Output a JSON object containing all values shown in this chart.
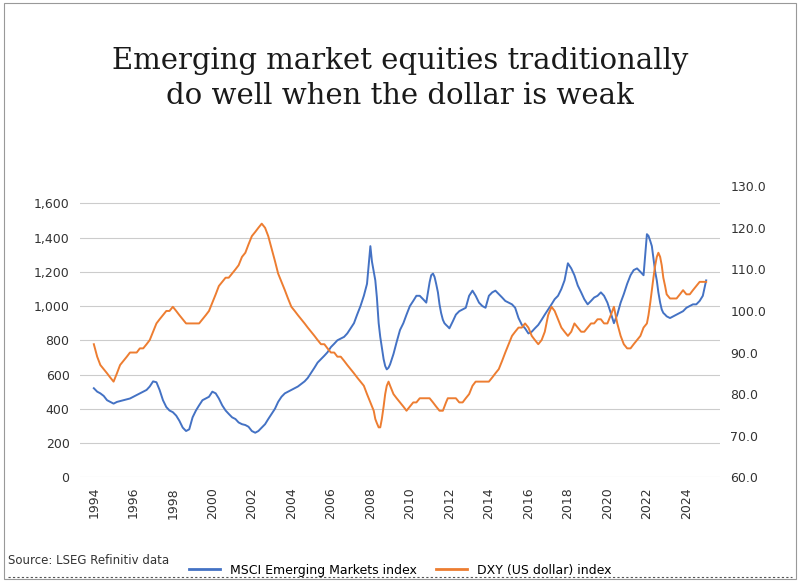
{
  "title": "Emerging market equities traditionally\ndo well when the dollar is weak",
  "title_bg_color": "#b8c9b8",
  "source_text": "Source: LSEG Refinitiv data",
  "legend_msci": "MSCI Emerging Markets index",
  "legend_dxy": "DXY (US dollar) index",
  "msci_color": "#4472c4",
  "dxy_color": "#ed7d31",
  "left_ylim": [
    0,
    1700
  ],
  "right_ylim": [
    60,
    130
  ],
  "left_yticks": [
    0,
    200,
    400,
    600,
    800,
    1000,
    1200,
    1400,
    1600
  ],
  "right_yticks": [
    60.0,
    70.0,
    80.0,
    90.0,
    100.0,
    110.0,
    120.0,
    130.0
  ],
  "xticks": [
    1994,
    1996,
    1998,
    2000,
    2002,
    2004,
    2006,
    2008,
    2010,
    2012,
    2014,
    2016,
    2018,
    2020,
    2022,
    2024
  ],
  "bg_color": "#ffffff",
  "plot_bg_color": "#ffffff",
  "grid_color": "#cccccc",
  "msci_data": [
    [
      1994.0,
      520
    ],
    [
      1994.17,
      500
    ],
    [
      1994.33,
      490
    ],
    [
      1994.5,
      475
    ],
    [
      1994.67,
      450
    ],
    [
      1994.83,
      440
    ],
    [
      1995.0,
      430
    ],
    [
      1995.17,
      440
    ],
    [
      1995.33,
      445
    ],
    [
      1995.5,
      450
    ],
    [
      1995.67,
      455
    ],
    [
      1995.83,
      460
    ],
    [
      1996.0,
      470
    ],
    [
      1996.17,
      480
    ],
    [
      1996.33,
      490
    ],
    [
      1996.5,
      500
    ],
    [
      1996.67,
      510
    ],
    [
      1996.83,
      530
    ],
    [
      1997.0,
      560
    ],
    [
      1997.17,
      555
    ],
    [
      1997.33,
      510
    ],
    [
      1997.5,
      450
    ],
    [
      1997.67,
      410
    ],
    [
      1997.83,
      390
    ],
    [
      1998.0,
      380
    ],
    [
      1998.17,
      360
    ],
    [
      1998.33,
      330
    ],
    [
      1998.5,
      290
    ],
    [
      1998.67,
      270
    ],
    [
      1998.83,
      280
    ],
    [
      1999.0,
      350
    ],
    [
      1999.17,
      390
    ],
    [
      1999.33,
      420
    ],
    [
      1999.5,
      450
    ],
    [
      1999.67,
      460
    ],
    [
      1999.83,
      470
    ],
    [
      2000.0,
      500
    ],
    [
      2000.17,
      490
    ],
    [
      2000.33,
      460
    ],
    [
      2000.5,
      420
    ],
    [
      2000.67,
      390
    ],
    [
      2000.83,
      370
    ],
    [
      2001.0,
      350
    ],
    [
      2001.17,
      340
    ],
    [
      2001.33,
      320
    ],
    [
      2001.5,
      310
    ],
    [
      2001.67,
      305
    ],
    [
      2001.83,
      295
    ],
    [
      2002.0,
      270
    ],
    [
      2002.17,
      260
    ],
    [
      2002.33,
      270
    ],
    [
      2002.5,
      290
    ],
    [
      2002.67,
      310
    ],
    [
      2002.83,
      340
    ],
    [
      2003.0,
      370
    ],
    [
      2003.17,
      400
    ],
    [
      2003.33,
      440
    ],
    [
      2003.5,
      470
    ],
    [
      2003.67,
      490
    ],
    [
      2003.83,
      500
    ],
    [
      2004.0,
      510
    ],
    [
      2004.17,
      520
    ],
    [
      2004.33,
      530
    ],
    [
      2004.5,
      545
    ],
    [
      2004.67,
      560
    ],
    [
      2004.83,
      580
    ],
    [
      2005.0,
      610
    ],
    [
      2005.17,
      640
    ],
    [
      2005.33,
      670
    ],
    [
      2005.5,
      690
    ],
    [
      2005.67,
      710
    ],
    [
      2005.83,
      730
    ],
    [
      2006.0,
      760
    ],
    [
      2006.17,
      780
    ],
    [
      2006.33,
      800
    ],
    [
      2006.5,
      810
    ],
    [
      2006.67,
      820
    ],
    [
      2006.83,
      840
    ],
    [
      2007.0,
      870
    ],
    [
      2007.17,
      900
    ],
    [
      2007.33,
      950
    ],
    [
      2007.5,
      1000
    ],
    [
      2007.67,
      1060
    ],
    [
      2007.83,
      1130
    ],
    [
      2008.0,
      1350
    ],
    [
      2008.08,
      1260
    ],
    [
      2008.17,
      1200
    ],
    [
      2008.25,
      1150
    ],
    [
      2008.33,
      1050
    ],
    [
      2008.42,
      900
    ],
    [
      2008.5,
      820
    ],
    [
      2008.58,
      760
    ],
    [
      2008.67,
      690
    ],
    [
      2008.75,
      650
    ],
    [
      2008.83,
      630
    ],
    [
      2008.92,
      640
    ],
    [
      2009.0,
      660
    ],
    [
      2009.17,
      720
    ],
    [
      2009.33,
      790
    ],
    [
      2009.5,
      860
    ],
    [
      2009.67,
      900
    ],
    [
      2009.83,
      950
    ],
    [
      2010.0,
      1000
    ],
    [
      2010.17,
      1030
    ],
    [
      2010.33,
      1060
    ],
    [
      2010.5,
      1060
    ],
    [
      2010.67,
      1040
    ],
    [
      2010.83,
      1020
    ],
    [
      2011.0,
      1140
    ],
    [
      2011.08,
      1180
    ],
    [
      2011.17,
      1190
    ],
    [
      2011.25,
      1170
    ],
    [
      2011.33,
      1130
    ],
    [
      2011.42,
      1080
    ],
    [
      2011.5,
      1010
    ],
    [
      2011.58,
      960
    ],
    [
      2011.67,
      920
    ],
    [
      2011.75,
      900
    ],
    [
      2011.83,
      890
    ],
    [
      2011.92,
      880
    ],
    [
      2012.0,
      870
    ],
    [
      2012.17,
      910
    ],
    [
      2012.33,
      950
    ],
    [
      2012.5,
      970
    ],
    [
      2012.67,
      980
    ],
    [
      2012.83,
      990
    ],
    [
      2013.0,
      1060
    ],
    [
      2013.17,
      1090
    ],
    [
      2013.33,
      1060
    ],
    [
      2013.5,
      1020
    ],
    [
      2013.67,
      1000
    ],
    [
      2013.83,
      990
    ],
    [
      2014.0,
      1060
    ],
    [
      2014.17,
      1080
    ],
    [
      2014.33,
      1090
    ],
    [
      2014.5,
      1070
    ],
    [
      2014.67,
      1050
    ],
    [
      2014.83,
      1030
    ],
    [
      2015.0,
      1020
    ],
    [
      2015.17,
      1010
    ],
    [
      2015.33,
      990
    ],
    [
      2015.5,
      930
    ],
    [
      2015.67,
      890
    ],
    [
      2015.83,
      870
    ],
    [
      2016.0,
      840
    ],
    [
      2016.17,
      850
    ],
    [
      2016.33,
      870
    ],
    [
      2016.5,
      890
    ],
    [
      2016.67,
      920
    ],
    [
      2016.83,
      950
    ],
    [
      2017.0,
      980
    ],
    [
      2017.17,
      1010
    ],
    [
      2017.33,
      1040
    ],
    [
      2017.5,
      1060
    ],
    [
      2017.67,
      1100
    ],
    [
      2017.83,
      1150
    ],
    [
      2018.0,
      1250
    ],
    [
      2018.17,
      1220
    ],
    [
      2018.33,
      1180
    ],
    [
      2018.5,
      1120
    ],
    [
      2018.67,
      1080
    ],
    [
      2018.83,
      1040
    ],
    [
      2019.0,
      1010
    ],
    [
      2019.17,
      1030
    ],
    [
      2019.33,
      1050
    ],
    [
      2019.5,
      1060
    ],
    [
      2019.67,
      1080
    ],
    [
      2019.83,
      1060
    ],
    [
      2020.0,
      1020
    ],
    [
      2020.17,
      960
    ],
    [
      2020.33,
      900
    ],
    [
      2020.5,
      950
    ],
    [
      2020.67,
      1020
    ],
    [
      2020.83,
      1070
    ],
    [
      2021.0,
      1130
    ],
    [
      2021.17,
      1180
    ],
    [
      2021.33,
      1210
    ],
    [
      2021.5,
      1220
    ],
    [
      2021.67,
      1200
    ],
    [
      2021.83,
      1180
    ],
    [
      2022.0,
      1420
    ],
    [
      2022.08,
      1410
    ],
    [
      2022.17,
      1380
    ],
    [
      2022.25,
      1350
    ],
    [
      2022.33,
      1280
    ],
    [
      2022.42,
      1200
    ],
    [
      2022.5,
      1150
    ],
    [
      2022.58,
      1080
    ],
    [
      2022.67,
      1020
    ],
    [
      2022.75,
      980
    ],
    [
      2022.83,
      960
    ],
    [
      2022.92,
      950
    ],
    [
      2023.0,
      940
    ],
    [
      2023.17,
      930
    ],
    [
      2023.33,
      940
    ],
    [
      2023.5,
      950
    ],
    [
      2023.67,
      960
    ],
    [
      2023.83,
      970
    ],
    [
      2024.0,
      990
    ],
    [
      2024.17,
      1000
    ],
    [
      2024.33,
      1010
    ],
    [
      2024.5,
      1010
    ],
    [
      2024.67,
      1030
    ],
    [
      2024.83,
      1060
    ],
    [
      2025.0,
      1150
    ]
  ],
  "dxy_data": [
    [
      1994.0,
      92
    ],
    [
      1994.17,
      89
    ],
    [
      1994.33,
      87
    ],
    [
      1994.5,
      86
    ],
    [
      1994.67,
      85
    ],
    [
      1994.83,
      84
    ],
    [
      1995.0,
      83
    ],
    [
      1995.17,
      85
    ],
    [
      1995.33,
      87
    ],
    [
      1995.5,
      88
    ],
    [
      1995.67,
      89
    ],
    [
      1995.83,
      90
    ],
    [
      1996.0,
      90
    ],
    [
      1996.17,
      90
    ],
    [
      1996.33,
      91
    ],
    [
      1996.5,
      91
    ],
    [
      1996.67,
      92
    ],
    [
      1996.83,
      93
    ],
    [
      1997.0,
      95
    ],
    [
      1997.17,
      97
    ],
    [
      1997.33,
      98
    ],
    [
      1997.5,
      99
    ],
    [
      1997.67,
      100
    ],
    [
      1997.83,
      100
    ],
    [
      1998.0,
      101
    ],
    [
      1998.17,
      100
    ],
    [
      1998.33,
      99
    ],
    [
      1998.5,
      98
    ],
    [
      1998.67,
      97
    ],
    [
      1998.83,
      97
    ],
    [
      1999.0,
      97
    ],
    [
      1999.17,
      97
    ],
    [
      1999.33,
      97
    ],
    [
      1999.5,
      98
    ],
    [
      1999.67,
      99
    ],
    [
      1999.83,
      100
    ],
    [
      2000.0,
      102
    ],
    [
      2000.17,
      104
    ],
    [
      2000.33,
      106
    ],
    [
      2000.5,
      107
    ],
    [
      2000.67,
      108
    ],
    [
      2000.83,
      108
    ],
    [
      2001.0,
      109
    ],
    [
      2001.17,
      110
    ],
    [
      2001.33,
      111
    ],
    [
      2001.5,
      113
    ],
    [
      2001.67,
      114
    ],
    [
      2001.83,
      116
    ],
    [
      2002.0,
      118
    ],
    [
      2002.17,
      119
    ],
    [
      2002.33,
      120
    ],
    [
      2002.5,
      121
    ],
    [
      2002.67,
      120
    ],
    [
      2002.83,
      118
    ],
    [
      2003.0,
      115
    ],
    [
      2003.17,
      112
    ],
    [
      2003.33,
      109
    ],
    [
      2003.5,
      107
    ],
    [
      2003.67,
      105
    ],
    [
      2003.83,
      103
    ],
    [
      2004.0,
      101
    ],
    [
      2004.17,
      100
    ],
    [
      2004.33,
      99
    ],
    [
      2004.5,
      98
    ],
    [
      2004.67,
      97
    ],
    [
      2004.83,
      96
    ],
    [
      2005.0,
      95
    ],
    [
      2005.17,
      94
    ],
    [
      2005.33,
      93
    ],
    [
      2005.5,
      92
    ],
    [
      2005.67,
      92
    ],
    [
      2005.83,
      91
    ],
    [
      2006.0,
      90
    ],
    [
      2006.17,
      90
    ],
    [
      2006.33,
      89
    ],
    [
      2006.5,
      89
    ],
    [
      2006.67,
      88
    ],
    [
      2006.83,
      87
    ],
    [
      2007.0,
      86
    ],
    [
      2007.17,
      85
    ],
    [
      2007.33,
      84
    ],
    [
      2007.5,
      83
    ],
    [
      2007.67,
      82
    ],
    [
      2007.83,
      80
    ],
    [
      2008.0,
      78
    ],
    [
      2008.08,
      77
    ],
    [
      2008.17,
      76
    ],
    [
      2008.25,
      74
    ],
    [
      2008.33,
      73
    ],
    [
      2008.42,
      72
    ],
    [
      2008.5,
      72
    ],
    [
      2008.58,
      74
    ],
    [
      2008.67,
      77
    ],
    [
      2008.75,
      80
    ],
    [
      2008.83,
      82
    ],
    [
      2008.92,
      83
    ],
    [
      2009.0,
      82
    ],
    [
      2009.17,
      80
    ],
    [
      2009.33,
      79
    ],
    [
      2009.5,
      78
    ],
    [
      2009.67,
      77
    ],
    [
      2009.83,
      76
    ],
    [
      2010.0,
      77
    ],
    [
      2010.17,
      78
    ],
    [
      2010.33,
      78
    ],
    [
      2010.5,
      79
    ],
    [
      2010.67,
      79
    ],
    [
      2010.83,
      79
    ],
    [
      2011.0,
      79
    ],
    [
      2011.17,
      78
    ],
    [
      2011.33,
      77
    ],
    [
      2011.5,
      76
    ],
    [
      2011.67,
      76
    ],
    [
      2011.75,
      77
    ],
    [
      2011.83,
      78
    ],
    [
      2011.92,
      79
    ],
    [
      2012.0,
      79
    ],
    [
      2012.17,
      79
    ],
    [
      2012.33,
      79
    ],
    [
      2012.5,
      78
    ],
    [
      2012.67,
      78
    ],
    [
      2012.83,
      79
    ],
    [
      2013.0,
      80
    ],
    [
      2013.17,
      82
    ],
    [
      2013.33,
      83
    ],
    [
      2013.5,
      83
    ],
    [
      2013.67,
      83
    ],
    [
      2013.83,
      83
    ],
    [
      2014.0,
      83
    ],
    [
      2014.17,
      84
    ],
    [
      2014.33,
      85
    ],
    [
      2014.5,
      86
    ],
    [
      2014.67,
      88
    ],
    [
      2014.83,
      90
    ],
    [
      2015.0,
      92
    ],
    [
      2015.17,
      94
    ],
    [
      2015.33,
      95
    ],
    [
      2015.5,
      96
    ],
    [
      2015.67,
      96
    ],
    [
      2015.83,
      97
    ],
    [
      2016.0,
      96
    ],
    [
      2016.17,
      94
    ],
    [
      2016.33,
      93
    ],
    [
      2016.5,
      92
    ],
    [
      2016.67,
      93
    ],
    [
      2016.83,
      95
    ],
    [
      2017.0,
      99
    ],
    [
      2017.17,
      101
    ],
    [
      2017.33,
      100
    ],
    [
      2017.5,
      98
    ],
    [
      2017.67,
      96
    ],
    [
      2017.83,
      95
    ],
    [
      2018.0,
      94
    ],
    [
      2018.17,
      95
    ],
    [
      2018.33,
      97
    ],
    [
      2018.5,
      96
    ],
    [
      2018.67,
      95
    ],
    [
      2018.83,
      95
    ],
    [
      2019.0,
      96
    ],
    [
      2019.17,
      97
    ],
    [
      2019.33,
      97
    ],
    [
      2019.5,
      98
    ],
    [
      2019.67,
      98
    ],
    [
      2019.83,
      97
    ],
    [
      2020.0,
      97
    ],
    [
      2020.17,
      99
    ],
    [
      2020.33,
      101
    ],
    [
      2020.5,
      97
    ],
    [
      2020.67,
      94
    ],
    [
      2020.83,
      92
    ],
    [
      2021.0,
      91
    ],
    [
      2021.17,
      91
    ],
    [
      2021.33,
      92
    ],
    [
      2021.5,
      93
    ],
    [
      2021.67,
      94
    ],
    [
      2021.83,
      96
    ],
    [
      2022.0,
      97
    ],
    [
      2022.08,
      99
    ],
    [
      2022.17,
      102
    ],
    [
      2022.25,
      105
    ],
    [
      2022.33,
      108
    ],
    [
      2022.42,
      111
    ],
    [
      2022.5,
      113
    ],
    [
      2022.58,
      114
    ],
    [
      2022.67,
      113
    ],
    [
      2022.75,
      111
    ],
    [
      2022.83,
      108
    ],
    [
      2022.92,
      106
    ],
    [
      2023.0,
      104
    ],
    [
      2023.17,
      103
    ],
    [
      2023.33,
      103
    ],
    [
      2023.5,
      103
    ],
    [
      2023.67,
      104
    ],
    [
      2023.83,
      105
    ],
    [
      2024.0,
      104
    ],
    [
      2024.17,
      104
    ],
    [
      2024.33,
      105
    ],
    [
      2024.5,
      106
    ],
    [
      2024.67,
      107
    ],
    [
      2024.83,
      107
    ],
    [
      2025.0,
      107
    ]
  ]
}
